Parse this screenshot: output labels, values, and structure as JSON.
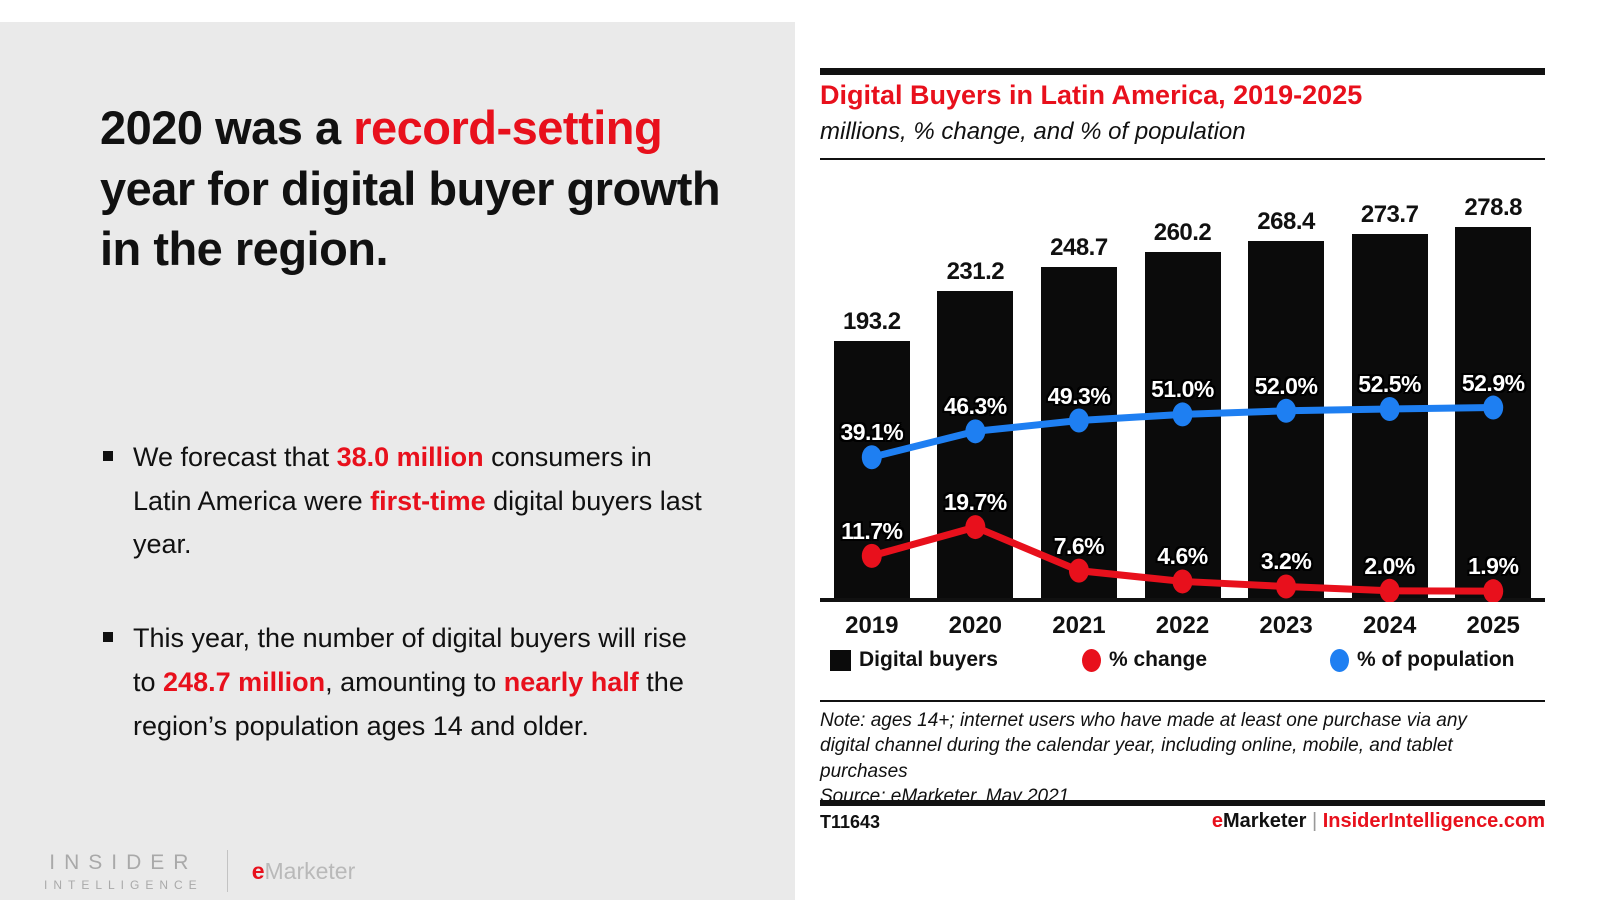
{
  "colors": {
    "red": "#e8101c",
    "blue": "#1e7ff2",
    "bar_black": "#0b0b0b",
    "panel_gray": "#eaeaea"
  },
  "left_panel": {
    "headline_segments": [
      {
        "t": "2020 was a "
      },
      {
        "t": "record-setting",
        "c": "red"
      },
      {
        "t": " year for digital buyer growth in the region."
      }
    ],
    "bullets": [
      {
        "segments": [
          {
            "t": "We forecast that "
          },
          {
            "t": "38.0 million",
            "c": "red"
          },
          {
            "t": " consumers in Latin America were "
          },
          {
            "t": "first-time",
            "c": "red"
          },
          {
            "t": " digital buyers last year."
          }
        ]
      },
      {
        "segments": [
          {
            "t": "This year, the number of digital buyers will rise to "
          },
          {
            "t": "248.7 million",
            "c": "red"
          },
          {
            "t": ", amounting to "
          },
          {
            "t": "nearly half",
            "c": "red"
          },
          {
            "t": " the region’s population ages 14 and older."
          }
        ]
      }
    ],
    "logo": {
      "line1": "INSIDER",
      "line2": "INTELLIGENCE",
      "brand_e": "e",
      "brand_rest": "Marketer"
    }
  },
  "chart": {
    "title": "Digital Buyers in Latin America, 2019-2025",
    "subtitle": "millions, % change, and % of population",
    "note": "Note: ages 14+; internet users who have made at least one purchase via any\ndigital channel during the calendar year, including online, mobile, and tablet\npurchases\nSource: eMarketer, May 2021",
    "footer_id": "T11643",
    "footer_brand_segments": [
      {
        "t": "e",
        "c": "red"
      },
      {
        "t": "Marketer",
        "c": "dark"
      },
      {
        "t": " | ",
        "c": "gray"
      },
      {
        "t": "InsiderIntelligence.com",
        "c": "red"
      }
    ]
  },
  "chart_data": {
    "type": "bar",
    "title": "Digital Buyers in Latin America, 2019-2025",
    "subtitle": "millions, % change, and % of population",
    "categories": [
      "2019",
      "2020",
      "2021",
      "2022",
      "2023",
      "2024",
      "2025"
    ],
    "series": [
      {
        "name": "Digital buyers",
        "type": "bar",
        "unit": "millions",
        "color": "#0b0b0b",
        "values": [
          193.2,
          231.2,
          248.7,
          260.2,
          268.4,
          273.7,
          278.8
        ]
      },
      {
        "name": "% change",
        "type": "line",
        "unit": "percent",
        "color": "#e8101c",
        "values": [
          11.7,
          19.7,
          7.6,
          4.6,
          3.2,
          2.0,
          1.9
        ]
      },
      {
        "name": "% of population",
        "type": "line",
        "unit": "percent",
        "color": "#1e7ff2",
        "values": [
          39.1,
          46.3,
          49.3,
          51.0,
          52.0,
          52.5,
          52.9
        ]
      }
    ],
    "legend_position": "bottom",
    "grid": false,
    "value_labels": true
  }
}
